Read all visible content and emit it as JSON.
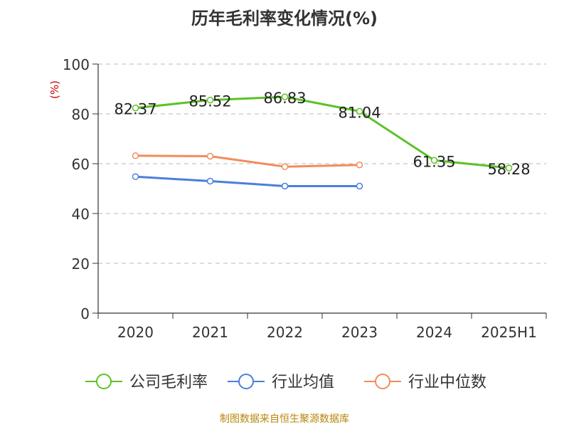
{
  "title": "历年毛利率变化情况(%)",
  "footer": "制图数据来自恒生聚源数据库",
  "chart_data": {
    "type": "line",
    "title": "历年毛利率变化情况(%)",
    "ylabel": "(%)",
    "categories": [
      "2020",
      "2021",
      "2022",
      "2023",
      "2024",
      "2025H1"
    ],
    "ylim": [
      0,
      100
    ],
    "yticks": [
      0,
      20,
      40,
      60,
      80,
      100
    ],
    "grid": true,
    "legend_position": "bottom",
    "series": [
      {
        "name": "公司毛利率",
        "color": "#5cc227",
        "values": [
          82.37,
          85.52,
          86.83,
          81.04,
          61.35,
          58.28
        ],
        "labels": [
          "82.37",
          "85.52",
          "86.83",
          "81.04",
          "61.35",
          "58.28"
        ]
      },
      {
        "name": "行业均值",
        "color": "#4a7fdc",
        "values": [
          54.8,
          53.0,
          51.0,
          51.0,
          null,
          null
        ]
      },
      {
        "name": "行业中位数",
        "color": "#f28c5a",
        "values": [
          63.2,
          63.0,
          58.8,
          59.5,
          null,
          null
        ]
      }
    ]
  }
}
